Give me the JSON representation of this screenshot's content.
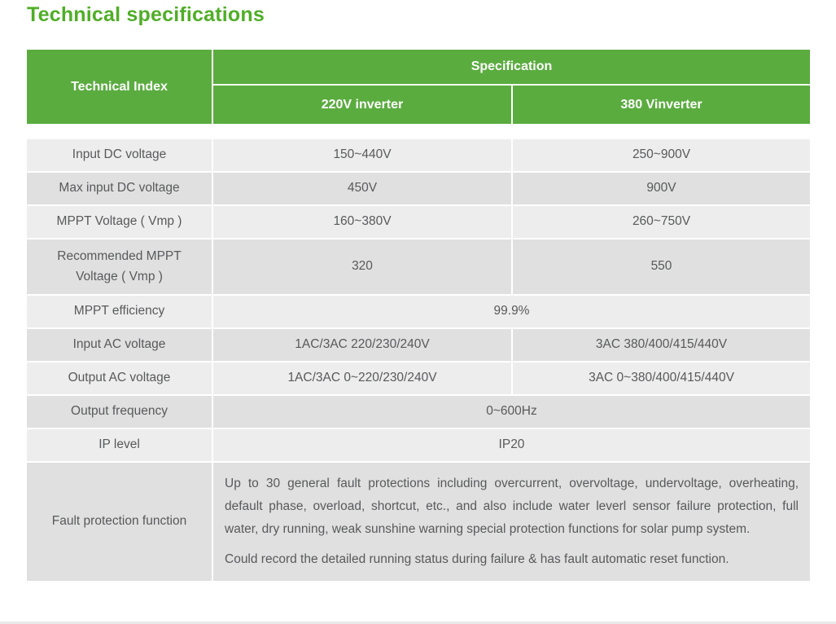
{
  "page": {
    "title": "Technical specifications"
  },
  "table": {
    "header": {
      "technical_index": "Technical Index",
      "specification": "Specification",
      "col_220": "220V inverter",
      "col_380": "380 Vinverter"
    },
    "rows": [
      {
        "label": "Input DC voltage",
        "v220": "150~440V",
        "v380": "250~900V"
      },
      {
        "label": "Max input DC voltage",
        "v220": "450V",
        "v380": "900V"
      },
      {
        "label": "MPPT Voltage ( Vmp )",
        "v220": "160~380V",
        "v380": "260~750V"
      },
      {
        "label": "Recommended MPPT Voltage ( Vmp )",
        "v220": "320",
        "v380": "550"
      },
      {
        "label": "MPPT efficiency",
        "value": "99.9%"
      },
      {
        "label": "Input AC voltage",
        "v220": "1AC/3AC 220/230/240V",
        "v380": "3AC 380/400/415/440V"
      },
      {
        "label": "Output AC voltage",
        "v220": "1AC/3AC 0~220/230/240V",
        "v380": "3AC 0~380/400/415/440V"
      },
      {
        "label": "Output frequency",
        "value": "0~600Hz"
      },
      {
        "label": "IP level",
        "value": "IP20"
      },
      {
        "label": "Fault protection function",
        "paragraphs": [
          "Up to 30 general fault protections including overcurrent, overvoltage, undervoltage, overheating, default phase, overload, shortcut, etc., and also include water leverl sensor failure protection, full water, dry running, weak sunshine warning special protection functions for solar pump system.",
          "Could record the detailed running status during failure & has fault automatic reset function."
        ]
      }
    ]
  },
  "colors": {
    "title_green": "#4fae27",
    "header_green": "#5aac3f",
    "row_light": "#ededed",
    "row_dark": "#e0e0e0",
    "body_text": "#58595b",
    "header_text": "#ffffff"
  }
}
